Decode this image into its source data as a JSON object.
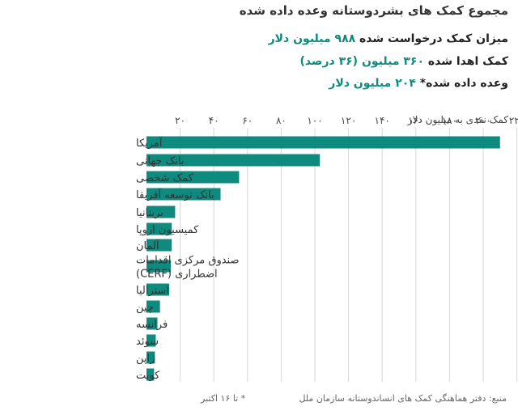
{
  "header": {
    "title": "مجموع کمک های بشردوستانه وعده داده شده",
    "requested_label": "میزان کمک درخواست شده",
    "requested_value": "۹۸۸ میلیون دلار",
    "donated_label": "کمک اهدا شده",
    "donated_value": "۳۶۰ میلیون (۳۶ درصد)",
    "pledged_label": "وعده داده شده*",
    "pledged_value": "۲۰۴ میلیون دلار"
  },
  "chart_data": {
    "type": "bar",
    "orientation": "horizontal",
    "axis_label": "کمک نقدی به میلیون دلار",
    "xlim": [
      0,
      220
    ],
    "ticks": [
      0,
      20,
      40,
      60,
      80,
      100,
      120,
      140,
      160,
      180,
      200,
      220
    ],
    "tick_labels": [
      "",
      "۲۰",
      "۴۰",
      "۶۰",
      "۸۰",
      "۱۰۰",
      "۱۲۰",
      "۱۴۰",
      "۱۶۰",
      "۱۸۰",
      "۲۰۰",
      "۲۲۰"
    ],
    "grid": true,
    "categories": [
      "آمریکا",
      "بانک جهانی",
      "کمک شخصی",
      "بانک توسعه آفریقا",
      "بریتانیا",
      "کمیسیون اروپا",
      "آلمان",
      "صندوق مرکزی اقدامات اضطراری (CERF)",
      "استرالیا",
      "چین",
      "فرانسه",
      "سوئد",
      "ژاپن",
      "کویت"
    ],
    "label_lines": [
      [
        "آمریکا"
      ],
      [
        "بانک جهانی"
      ],
      [
        "کمک شخصی"
      ],
      [
        "بانک توسعه آفریقا"
      ],
      [
        "بریتانیا"
      ],
      [
        "کمیسیون اروپا"
      ],
      [
        "آلمان"
      ],
      [
        "صندوق مرکزی اقدامات",
        "اضطراری (CERF)"
      ],
      [
        "استرالیا"
      ],
      [
        "چین"
      ],
      [
        "فرانسه"
      ],
      [
        "سوئد"
      ],
      [
        "ژاپن"
      ],
      [
        "کویت"
      ]
    ],
    "values": [
      210,
      103,
      55,
      44,
      17,
      15,
      15,
      14.5,
      13.5,
      8,
      6.5,
      5.5,
      5,
      4.5
    ],
    "colors": {
      "bar": "#0f8a7e",
      "grid": "#d6d6d6"
    }
  },
  "footer": {
    "source": "منبع: دفتر هماهنگی کمک های انساندوستانه سازمان ملل",
    "note": "* تا ۱۶ اکتبر"
  }
}
